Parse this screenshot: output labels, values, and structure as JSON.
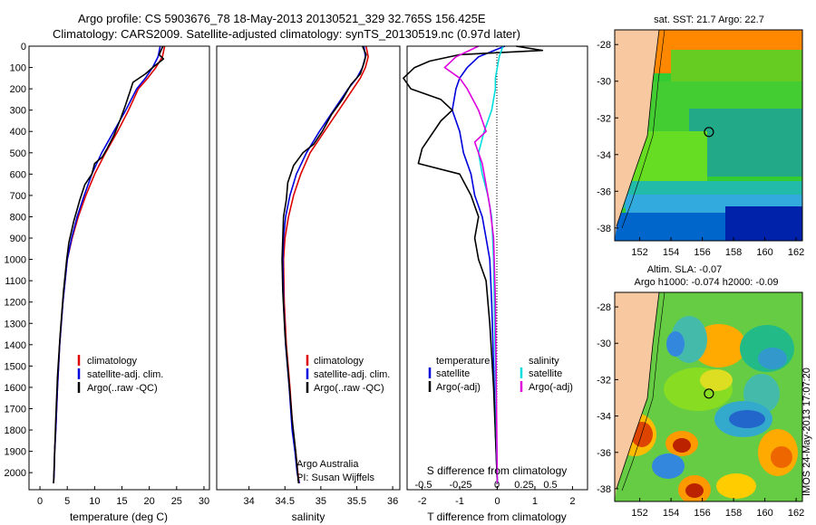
{
  "header": {
    "line1": "Argo profile: CS 5903676_78 18-May-2013 20130521_329 32.765S 156.425E",
    "line2": "Climatology: CARS2009. Satellite-adjusted climatology: synTS_20130519.nc (0.97d later)"
  },
  "side_text": "IMOS 24-May-2013 17:07:20",
  "colors": {
    "climatology": "#dd0000",
    "satellite": "#0000dd",
    "argo": "#000000",
    "salinity_satellite": "#00dddd",
    "salinity_argo": "#dd00dd",
    "land": "#f8c8a0"
  },
  "chart_data": [
    {
      "id": "temperature",
      "type": "line",
      "xlabel": "temperature (deg C)",
      "ylabel": "",
      "xlim": [
        -2,
        31
      ],
      "ylim": [
        2080,
        0
      ],
      "xticks": [
        0,
        5,
        10,
        15,
        20,
        25,
        30
      ],
      "yticks": [
        0,
        100,
        200,
        300,
        400,
        500,
        600,
        700,
        800,
        900,
        1000,
        1100,
        1200,
        1300,
        1400,
        1500,
        1600,
        1700,
        1800,
        1900,
        2000
      ],
      "legend": {
        "placement": "lower-middle",
        "entries": [
          "climatology",
          "satellite-adj. clim.",
          "Argo(..raw -QC)"
        ]
      },
      "series": [
        {
          "name": "climatology",
          "color": "#dd0000",
          "x": [
            22.8,
            22.4,
            21.2,
            19.7,
            18.0,
            16.2,
            14.2,
            12.0,
            10.0,
            8.4,
            7.0,
            5.9,
            5.0,
            4.2,
            3.6,
            3.2,
            2.9,
            2.7,
            2.6,
            2.5
          ],
          "y": [
            0,
            50,
            100,
            150,
            200,
            300,
            400,
            500,
            600,
            700,
            800,
            900,
            1000,
            1200,
            1400,
            1600,
            1800,
            1900,
            2000,
            2050
          ]
        },
        {
          "name": "satellite-adj. clim.",
          "color": "#0000dd",
          "x": [
            22.0,
            21.6,
            20.6,
            19.3,
            17.7,
            15.7,
            13.5,
            11.3,
            9.5,
            8.1,
            6.8,
            5.8,
            5.0,
            4.2,
            3.6,
            3.2,
            2.9,
            2.7,
            2.6,
            2.5
          ],
          "y": [
            0,
            50,
            100,
            150,
            200,
            300,
            400,
            500,
            600,
            700,
            800,
            900,
            1000,
            1200,
            1400,
            1600,
            1800,
            1900,
            2000,
            2050
          ]
        },
        {
          "name": "Argo(..raw -QC)",
          "color": "#000000",
          "x": [
            22.5,
            21.8,
            22.6,
            20.6,
            19.3,
            17.0,
            16.5,
            15.6,
            14.6,
            13.5,
            12.3,
            11.4,
            10.0,
            9.5,
            8.2,
            7.3,
            6.2,
            5.3,
            4.9,
            4.3,
            3.7,
            3.2,
            2.9,
            2.7,
            2.5
          ],
          "y": [
            0,
            40,
            60,
            100,
            130,
            170,
            210,
            280,
            350,
            420,
            480,
            520,
            550,
            600,
            650,
            720,
            820,
            920,
            1000,
            1150,
            1350,
            1550,
            1750,
            1900,
            2050
          ]
        }
      ]
    },
    {
      "id": "salinity",
      "type": "line",
      "xlabel": "salinity",
      "ylabel": "",
      "xlim": [
        33.55,
        36.1
      ],
      "ylim": [
        2080,
        0
      ],
      "xticks": [
        34,
        34.5,
        35,
        35.5,
        36
      ],
      "legend": {
        "placement": "lower-middle",
        "entries": [
          "climatology",
          "satellite-adj. clim.",
          "Argo(..raw -QC)"
        ]
      },
      "annotation": [
        "Argo Australia",
        "PI: Susan Wijffels"
      ],
      "series": [
        {
          "name": "climatology",
          "color": "#dd0000",
          "x": [
            35.63,
            35.66,
            35.62,
            35.55,
            35.45,
            35.25,
            35.05,
            34.85,
            34.72,
            34.62,
            34.55,
            34.5,
            34.48,
            34.49,
            34.52,
            34.57,
            34.61,
            34.65,
            34.68,
            34.7
          ],
          "y": [
            0,
            50,
            100,
            150,
            200,
            300,
            400,
            500,
            600,
            700,
            800,
            900,
            1000,
            1200,
            1400,
            1600,
            1800,
            1900,
            2000,
            2050
          ]
        },
        {
          "name": "satellite-adj. clim.",
          "color": "#0000dd",
          "x": [
            35.6,
            35.62,
            35.58,
            35.5,
            35.38,
            35.18,
            34.98,
            34.8,
            34.66,
            34.57,
            34.51,
            34.48,
            34.47,
            34.48,
            34.51,
            34.56,
            34.6,
            34.64,
            34.67,
            34.7
          ],
          "y": [
            0,
            50,
            100,
            150,
            200,
            300,
            400,
            500,
            600,
            700,
            800,
            900,
            1000,
            1200,
            1400,
            1600,
            1800,
            1900,
            2000,
            2050
          ]
        },
        {
          "name": "Argo(..raw -QC)",
          "color": "#000000",
          "x": [
            35.58,
            35.63,
            35.6,
            35.55,
            35.42,
            35.3,
            35.15,
            35.02,
            34.9,
            34.75,
            34.62,
            34.54,
            34.52,
            34.48,
            34.47,
            34.46,
            34.47,
            34.5,
            34.55,
            34.6,
            34.65,
            34.69
          ],
          "y": [
            0,
            40,
            80,
            130,
            180,
            250,
            320,
            400,
            460,
            500,
            560,
            640,
            720,
            800,
            900,
            1000,
            1150,
            1350,
            1550,
            1750,
            1900,
            2050
          ]
        }
      ]
    },
    {
      "id": "difference",
      "type": "line",
      "xlabel": "T difference from climatology",
      "x2label": "S difference from climatology",
      "xlim": [
        -2.4,
        2.4
      ],
      "ylim": [
        2080,
        0
      ],
      "xticks": [
        -2,
        -1,
        0,
        1,
        2
      ],
      "x2ticks": [
        "-0.5",
        "-0.25",
        "0",
        "0.25",
        "0.5"
      ],
      "legend": {
        "placement": "lower-middle",
        "columns": [
          {
            "title": "temperature",
            "entries": [
              "satellite",
              "Argo(-adj)"
            ]
          },
          {
            "title": "salinity",
            "entries": [
              "satellite",
              "Argo(-adj)"
            ]
          }
        ]
      },
      "series": [
        {
          "name": "temperature satellite",
          "color": "#0000dd",
          "x": [
            0.2,
            -0.5,
            -0.8,
            -1.0,
            -1.1,
            -1.2,
            -1.0,
            -0.9,
            -0.7,
            -0.6,
            -0.4,
            -0.3,
            -0.2,
            -0.15,
            -0.1,
            -0.05,
            0
          ],
          "y": [
            0,
            50,
            100,
            150,
            200,
            300,
            400,
            500,
            600,
            700,
            800,
            900,
            1000,
            1200,
            1500,
            1800,
            2050
          ]
        },
        {
          "name": "temperature Argo(-adj)",
          "color": "#000000",
          "x": [
            0.5,
            1.2,
            -1.0,
            -1.8,
            -2.2,
            -2.5,
            -2.3,
            -1.5,
            -1.2,
            -1.5,
            -2.0,
            -2.1,
            -1.0,
            -0.7,
            -0.5,
            -0.6,
            -0.5,
            -0.3,
            -0.2,
            -0.1,
            0
          ],
          "y": [
            0,
            20,
            40,
            70,
            100,
            150,
            200,
            250,
            300,
            350,
            480,
            550,
            600,
            700,
            800,
            900,
            1000,
            1100,
            1300,
            1600,
            2050
          ]
        },
        {
          "name": "salinity satellite",
          "color": "#00dddd",
          "x": [
            0.15,
            0.05,
            0,
            -0.05,
            -0.05,
            -0.15,
            -0.35,
            -0.5,
            -0.4,
            -0.25,
            -0.15,
            -0.1,
            -0.05,
            0
          ],
          "y": [
            0,
            50,
            100,
            150,
            200,
            300,
            400,
            500,
            600,
            700,
            800,
            1000,
            1500,
            2050
          ]
        },
        {
          "name": "salinity Argo(-adj)",
          "color": "#dd00dd",
          "x": [
            -0.5,
            -1.1,
            -1.4,
            -1.0,
            -0.8,
            -0.5,
            -0.3,
            -0.6,
            -0.4,
            -0.3,
            -0.2,
            -0.1,
            -0.05,
            0
          ],
          "y": [
            0,
            50,
            100,
            150,
            200,
            300,
            400,
            450,
            550,
            650,
            750,
            900,
            1200,
            2050
          ]
        }
      ]
    },
    {
      "id": "sst-map",
      "type": "heatmap",
      "title": "sat. SST: 21.7 Argo: 22.7",
      "xlim": [
        150.4,
        162.4
      ],
      "ylim": [
        -38.7,
        -27.2
      ],
      "xticks": [
        152,
        154,
        156,
        158,
        160,
        162
      ],
      "yticks": [
        -28,
        -30,
        -32,
        -34,
        -36,
        -38
      ],
      "marker": {
        "lon": 156.425,
        "lat": -32.765
      }
    },
    {
      "id": "sla-map",
      "type": "heatmap",
      "title": "Altim. SLA: -0.07",
      "subtitle": "Argo h1000: -0.074 h2000: -0.09",
      "xlim": [
        150.4,
        162.4
      ],
      "ylim": [
        -38.7,
        -27.2
      ],
      "xticks": [
        152,
        154,
        156,
        158,
        160,
        162
      ],
      "yticks": [
        -28,
        -30,
        -32,
        -34,
        -36,
        -38
      ],
      "marker": {
        "lon": 156.425,
        "lat": -32.765
      }
    }
  ]
}
